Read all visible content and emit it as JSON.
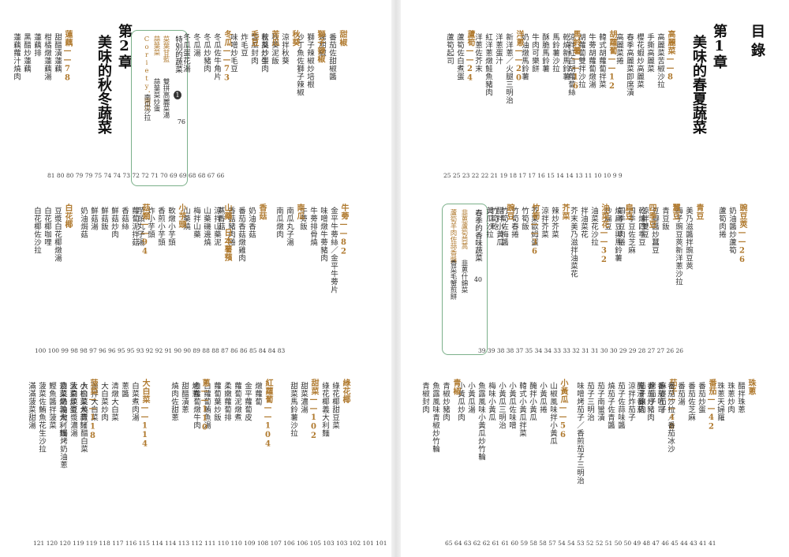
{
  "toc_title": "目錄",
  "chapters": [
    {
      "num": "第1章",
      "title": "美味的春夏蔬菜"
    },
    {
      "num": "第2章",
      "title": "美味的秋冬蔬菜"
    }
  ],
  "special_boxes": [
    {
      "title": "春季的香味蔬菜",
      "page": "40",
      "sub1": "韭蔥蘆筍茼蒿",
      "sub2": "韭蔥什錦菜",
      "sub3": "蘆筍羊肉佐蒜香醬",
      "sub4": "香菜毛蟹煎餅"
    },
    {
      "title": "特別的蔬菜",
      "num": "1",
      "page": "76",
      "sub1": "菜葉甘藍",
      "sub2": "蒜葉菜",
      "sub3": "Coriety．南瓜",
      "line1": "雙拼高麗菜湯",
      "line2": "蒜葉菜炒蛋",
      "line3": "南瓜沙拉"
    }
  ],
  "page_numbers": {
    "r1": "25 25   23 22 22 21   19 18 17 17 16   15 14 14 13   11 10 10 9 9",
    "r2": "39 39 38 38 37   35 34 34 33 33 32   31 31   30 30   29 29 28   27 27   26 26",
    "r3": "65 64 63 62 62 61 61 60 59 58 58 57   54 54 53 52 52 51 50 50 49 48   47 46 45 44 43   41 41",
    "l1": "81 80 80 79 79   75 74 74 73   72 72   71 70 69 69 68 68   67 66",
    "l2": "100 100 99   98 98 97 96 96 95 95   93 92 92 91 90 90 89   88 88 87   86 86   85 84 84 83",
    "l3": "121 120 120 119 119 118   117 116 115 114 114 113 112 111 110 110   109 108 107 106 106 105   103 103 102   101 101"
  },
  "columns": [
    {
      "id": "gaolicai",
      "head": "高麗菜——8",
      "items": [
        "高麗菜苦椒沙拉",
        "手撕高麗菜",
        "櫻花蝦炒高麗菜",
        "春季高麗菜即席漬",
        "高麗菜捲"
      ]
    },
    {
      "id": "huluobo",
      "head": "胡蘿蔔——12",
      "items": [
        "韓式胡蘿蔔拌菜",
        "牛蒡胡蘿蔔燉湯",
        "胡蘿蔔雙拌沙拉",
        "涼拌紅白胡蘿蔔絲"
      ]
    },
    {
      "id": "malingshu",
      "head": "馬鈴薯——16",
      "items": [
        "乾燒新馬鈴薯",
        "馬鈴薯沙拉",
        "酥脆馬鈴薯",
        "牛肉可樂餅",
        "奶油燉馬鈴薯"
      ]
    },
    {
      "id": "yangcong",
      "head": "洋蔥——20",
      "items": [
        "新洋蔥／火腿三明治",
        "洋蔥蛋汁",
        "紅洋蔥燉鮭魚豬肉",
        "洋蔥佐芥末"
      ]
    },
    {
      "id": "luosun",
      "head": "蘆筍——24",
      "items": [
        "蘆筍佐白煮蛋",
        "蘆筍起司"
      ]
    },
    {
      "id": "wandou",
      "head": "豌豆莢——26",
      "items": [
        "奶油醬炒蘆筍",
        "蘆筍肉捲"
      ]
    },
    {
      "id": "qingdou",
      "head": "青豆",
      "items": [
        "美乃滋醬拌豌豆莢",
        "梅子豌豆莢新洋蔥沙拉"
      ]
    },
    {
      "id": "canddou",
      "head": "蠶豆",
      "items": [
        "青豆飯",
        "豆瓣醬炒蠶豆",
        "涼拌雙豆"
      ]
    },
    {
      "id": "sijidou",
      "head": "四季豆",
      "items": [
        "乾煸四季豆",
        "四季豆佐芝麻",
        "四季豆肉捲"
      ]
    },
    {
      "id": "biandou",
      "head": "扁豆",
      "items": [
        "燒扁豆與馬鈴薯",
        "炒扁豆"
      ]
    },
    {
      "id": "youcaihua",
      "head": "油菜花——32",
      "items": [
        "油菜花沙拉",
        "拌油菜花",
        "芥末美乃滋拌油菜花"
      ]
    },
    {
      "id": "jiecai",
      "head": "芥菜",
      "items": [
        "辣炒芥菜",
        "涼拌芥菜",
        "芥菜歐姆蛋"
      ]
    },
    {
      "id": "zhusun",
      "head": "竹筍——36",
      "items": [
        "竹筍飯",
        "竹筍春捲",
        "竹筍佐梅醬",
        "竹筍乾"
      ]
    },
    {
      "id": "wanbao",
      "head": "豌豆",
      "items": [
        "醋拌小黃瓜",
        "黃瓜沙拉"
      ]
    },
    {
      "id": "xiaohuanggua",
      "head": "小黃瓜——56",
      "items": [
        "山椒風味拌小黃瓜",
        "小黃瓜捲",
        "醃拌小黃瓜",
        "韓式小黃瓜拌菜",
        "小黃瓜佐味噌",
        "小黃瓜三明治",
        "梅味小黃瓜",
        "魚露風味小黃瓜炒竹輪",
        "小黃瓜湯",
        "小黃瓜炒肉"
      ]
    },
    {
      "id": "qiezi",
      "head": "茄子——48",
      "items": [
        "麻婆茄子",
        "烤茄子",
        "茄子鑲肉",
        "涼拌炸茄子",
        "茄子佐蒜味醬",
        "燒茄子佐青醬",
        "茄子南蠻漬",
        "茄子三明治",
        "味噌烤茄子／香煎茄子三明治"
      ]
    },
    {
      "id": "fanqie",
      "head": "番茄——42",
      "items": [
        "番茄炒蛋",
        "番茄佐芝麻",
        "番茄湯",
        "番茄沙拉／番茄冰沙",
        "番茄吐司",
        "番茄炒豬肉",
        "醃漬番茄"
      ]
    },
    {
      "id": "zhuqi",
      "head": "珠蔥",
      "items": [
        "醋拌珠蔥",
        "珠蔥炒肉",
        "珠蔥天婦羅"
      ]
    },
    {
      "id": "kugua",
      "head": "苦瓜",
      "items": [
        "苦瓜炒蛋",
        "苦瓜沙拉",
        "青椒苦瓜湯"
      ]
    },
    {
      "id": "tianjiao",
      "head": "甜椒",
      "items": [
        "番茄佐甜椒醬",
        "烤甜椒"
      ]
    },
    {
      "id": "shizilajiao",
      "head": "獅子辣椒",
      "items": [
        "獅子辣椒炒培根",
        "沙丁魚佐獅子辣椒"
      ]
    },
    {
      "id": "qiukui",
      "head": "秋葵",
      "items": [
        "涼拌秋葵",
        "秋葵泥飯",
        "秋葵炒蛋"
      ]
    },
    {
      "id": "kugua2",
      "head": "苦瓜",
      "items": [
        "苦瓜炒牛肉",
        "苦瓜封肉"
      ]
    },
    {
      "id": "maodou",
      "head": "毛豆",
      "items": [
        "炸毛豆",
        "味噌炒毛豆"
      ]
    },
    {
      "id": "dongqua",
      "head": "冬瓜——73",
      "items": [
        "冬瓜佐牛角片",
        "冬瓜炒豬肉",
        "冬瓜湯",
        "冬瓜蛋花湯"
      ]
    },
    {
      "id": "lianou",
      "head": "蓮藕——78",
      "items": [
        "甜醋漬蓮藕",
        "柑橘燉蓮藕湯",
        "蓮藕排",
        "黑醋炒蓮藕",
        "蓮藕蘿汁燒肉"
      ]
    },
    {
      "id": "niubang",
      "head": "牛蒡——82",
      "items": [
        "金平牛蒡絲／金平牛蒡片",
        "味噌燉牛蒡豬肉",
        "牛蒡排骨燒",
        "牛蒡飯"
      ]
    },
    {
      "id": "nangua",
      "head": "南瓜",
      "items": [
        "南瓜丸子湯",
        "南瓜燉肉"
      ]
    },
    {
      "id": "xiangu",
      "head": "香菇",
      "items": [
        "奶油香菇",
        "番茄香菇燉雞肉",
        "香菇豬肉捲",
        "蒸香菇"
      ]
    },
    {
      "id": "shanyao",
      "head": "山藥．日本薯蕷",
      "items": [
        "涼拌山藥泥",
        "山藥磯邊燒",
        "梅拌山藥",
        "山藥燒"
      ]
    },
    {
      "id": "xiaofanqie",
      "head": "小芋頭",
      "items": [
        "軟燉小芋頭",
        "香煎小芋頭",
        "炸小芋頭",
        "芋頭丸子湯"
      ]
    },
    {
      "id": "gulei",
      "head": "菇類——94",
      "items": [
        "蘿蔔泥拌菇",
        "香菇絲",
        "鮮菇炒肉",
        "鮮菇飯",
        "鮮菇湯",
        "奶油焗菇"
      ]
    },
    {
      "id": "baihuacai",
      "head": "白花椰",
      "items": [
        "豆漿白花椰燉湯",
        "白花椰咖哩",
        "白花椰佐沙拉"
      ]
    },
    {
      "id": "lvhuacai",
      "head": "綠花椰",
      "items": [
        "綠花椰甜豆菜",
        "綠花椰義大利麵"
      ]
    },
    {
      "id": "tiancai",
      "head": "甜菜——102",
      "items": [
        "甜菜濃湯",
        "甜菜馬鈴薯沙拉"
      ]
    },
    {
      "id": "hongluobo",
      "head": "紅蘿蔔——104",
      "items": [
        "燉蘿蔔",
        "金平蘿蔔皮",
        "蘿蔔泥燉煮",
        "柔嫩蘿蔔排",
        "蘿蔔葉炒飯",
        "白蘿蔔鮪魚湯",
        "白蘿蔔燉牛肉"
      ]
    },
    {
      "id": "cong",
      "head": "蔥——110",
      "items": [
        "烤蔥",
        "甜醋漬蔥",
        "燒肉佐甜蔥"
      ]
    },
    {
      "id": "dabaicai",
      "head": "大白菜——114",
      "items": [
        "白菜煮肉湯",
        "蔥醬",
        "清燉大白菜",
        "大白菜炒肉",
        "涼拌大白菜",
        "大白菜燒賣／醋白菜",
        "大白菜豆漿濃湯",
        "白菜奶油燉／焗烤奶油蔥"
      ]
    },
    {
      "id": "bocai",
      "head": "菠菜——118",
      "items": [
        "小松菜大蒜麵",
        "菠菜炒蛋",
        "菠菜燉義大利麵",
        "鰹魚醬拌菠菜",
        "菠菜佐鮪魚花生沙拉",
        "滿滿菠菜甜湯"
      ]
    },
    {
      "id": "qingjiao",
      "head": "青椒",
      "items": [
        "青椒炒豬肉",
        "魚露風味青椒炒竹輪",
        "青椒封肉"
      ]
    }
  ]
}
